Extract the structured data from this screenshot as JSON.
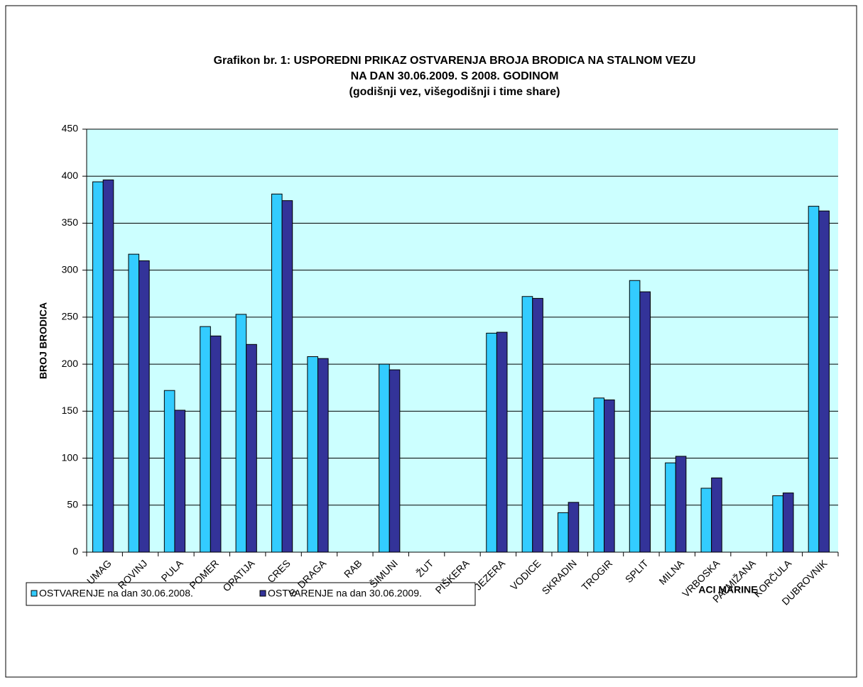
{
  "chart_data": {
    "type": "bar",
    "title": [
      "Grafikon br. 1: USPOREDNI PRIKAZ OSTVARENJA BROJA BRODICA NA STALNOM VEZU",
      "NA DAN 30.06.2009. S 2008. GODINOM",
      "(godišnji vez, višegodišnji i time share)"
    ],
    "y_label": "BROJ BRODICA",
    "x_label": "ACI MARINE",
    "categories": [
      "UMAG",
      "ROVINJ",
      "PULA",
      "POMER",
      "OPATIJA",
      "CRES",
      "S. DRAGA",
      "RAB",
      "ŠIMUNI",
      "ŽUT",
      "PIŠKERA",
      "JEZERA",
      "VODICE",
      "SKRADIN",
      "TROGIR",
      "SPLIT",
      "MILNA",
      "VRBOSKA",
      "PALMIŽANA",
      "KORČULA",
      "DUBROVNIK"
    ],
    "series": [
      {
        "name": "OSTVARENJE  na dan 30.06.2008.",
        "color": "#33ccff",
        "values": [
          394,
          317,
          172,
          240,
          253,
          381,
          208,
          null,
          200,
          null,
          null,
          233,
          272,
          42,
          164,
          289,
          95,
          68,
          null,
          60,
          368
        ]
      },
      {
        "name": "OSTVARENJE na dan 30.06.2009.",
        "color": "#333399",
        "values": [
          396,
          310,
          151,
          230,
          221,
          374,
          206,
          null,
          194,
          null,
          null,
          234,
          270,
          53,
          162,
          277,
          102,
          79,
          null,
          63,
          363
        ]
      }
    ],
    "ylim": [
      0,
      450
    ],
    "yticks": [
      0,
      50,
      100,
      150,
      200,
      250,
      300,
      350,
      400,
      450
    ],
    "grid": true,
    "plot_background": "#ccffff",
    "legend": "bottom-left"
  }
}
